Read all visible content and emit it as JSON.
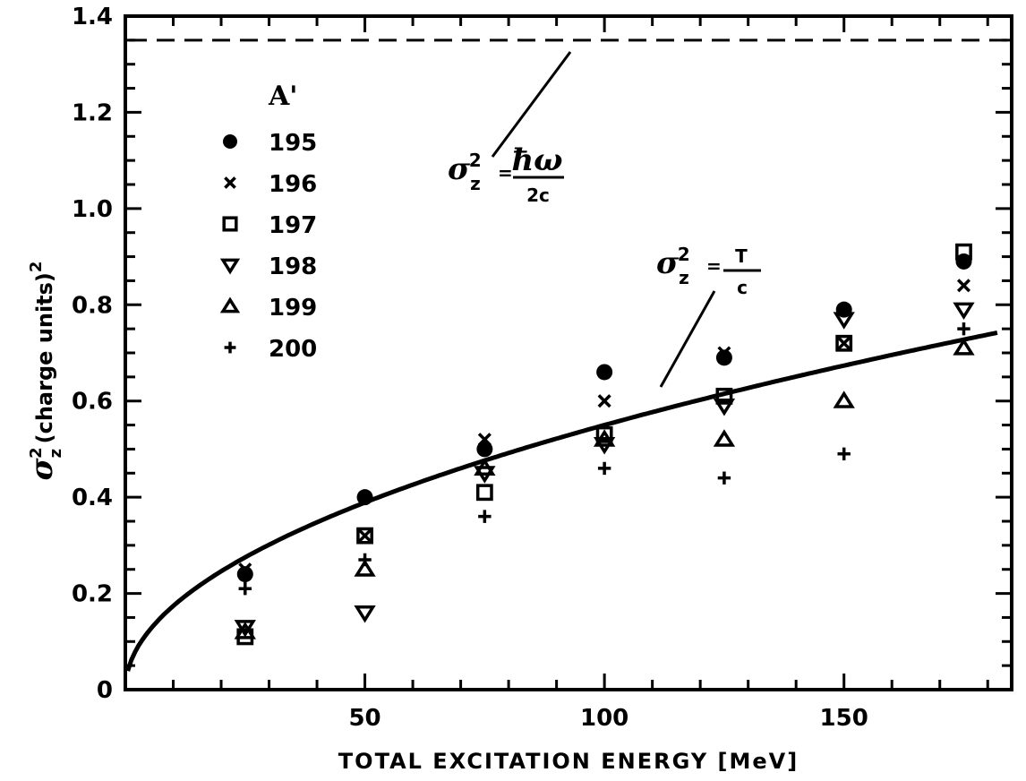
{
  "chart_data": {
    "type": "scatter",
    "xlabel": "TOTAL EXCITATION ENERGY [MeV]",
    "ylabel_main": "σ",
    "ylabel_sub": "z",
    "ylabel_sup": "2",
    "ylabel_rest": "(charge units)",
    "ylabel_rest_sup": "2",
    "xlim": [
      0,
      185
    ],
    "ylim": [
      0,
      1.4
    ],
    "x_ticks": [
      50,
      100,
      150
    ],
    "x_tick_labels": [
      "50",
      "100",
      "150"
    ],
    "y_ticks": [
      0,
      0.2,
      0.4,
      0.6,
      0.8,
      1.0,
      1.2,
      1.4
    ],
    "y_tick_labels": [
      "0",
      "0.2",
      "0.4",
      "0.6",
      "0.8",
      "1.0",
      "1.2",
      "1.4"
    ],
    "legend_title": "A'",
    "legend_position": "upper-left",
    "series": [
      {
        "name": "195",
        "marker": "filled-circle",
        "points": [
          [
            25,
            0.24
          ],
          [
            50,
            0.4
          ],
          [
            75,
            0.5
          ],
          [
            100,
            0.66
          ],
          [
            125,
            0.69
          ],
          [
            150,
            0.79
          ],
          [
            175,
            0.89
          ]
        ]
      },
      {
        "name": "196",
        "marker": "cross",
        "points": [
          [
            25,
            0.25
          ],
          [
            50,
            0.32
          ],
          [
            75,
            0.52
          ],
          [
            100,
            0.6
          ],
          [
            125,
            0.7
          ],
          [
            150,
            0.72
          ],
          [
            175,
            0.84
          ]
        ]
      },
      {
        "name": "197",
        "marker": "open-square",
        "points": [
          [
            25,
            0.11
          ],
          [
            50,
            0.32
          ],
          [
            75,
            0.41
          ],
          [
            100,
            0.53
          ],
          [
            125,
            0.61
          ],
          [
            150,
            0.72
          ],
          [
            175,
            0.91
          ]
        ]
      },
      {
        "name": "198",
        "marker": "open-down-triangle",
        "points": [
          [
            25,
            0.13
          ],
          [
            50,
            0.16
          ],
          [
            75,
            0.45
          ],
          [
            100,
            0.51
          ],
          [
            125,
            0.59
          ],
          [
            150,
            0.77
          ],
          [
            175,
            0.79
          ]
        ]
      },
      {
        "name": "199",
        "marker": "open-up-triangle",
        "points": [
          [
            25,
            0.12
          ],
          [
            50,
            0.25
          ],
          [
            75,
            0.46
          ],
          [
            100,
            0.52
          ],
          [
            125,
            0.52
          ],
          [
            150,
            0.6
          ],
          [
            175,
            0.71
          ]
        ]
      },
      {
        "name": "200",
        "marker": "plus",
        "points": [
          [
            25,
            0.21
          ],
          [
            50,
            0.27
          ],
          [
            75,
            0.36
          ],
          [
            100,
            0.46
          ],
          [
            125,
            0.44
          ],
          [
            150,
            0.49
          ],
          [
            175,
            0.75
          ]
        ]
      }
    ],
    "curves": [
      {
        "id": "dashed",
        "style": "dashed",
        "y_constant": 1.35,
        "label_lhs": "σ",
        "label_sub": "z",
        "label_sup": "2",
        "label_eq": "=",
        "label_num": "ħω",
        "label_den": "2c"
      },
      {
        "id": "solid",
        "style": "solid",
        "formula": "0.055*sqrt(x)",
        "x_range": [
          0.5,
          182
        ],
        "label_lhs": "σ",
        "label_sub": "z",
        "label_sup": "2",
        "label_eq": "=",
        "label_num": "T",
        "label_den": "c"
      }
    ]
  }
}
